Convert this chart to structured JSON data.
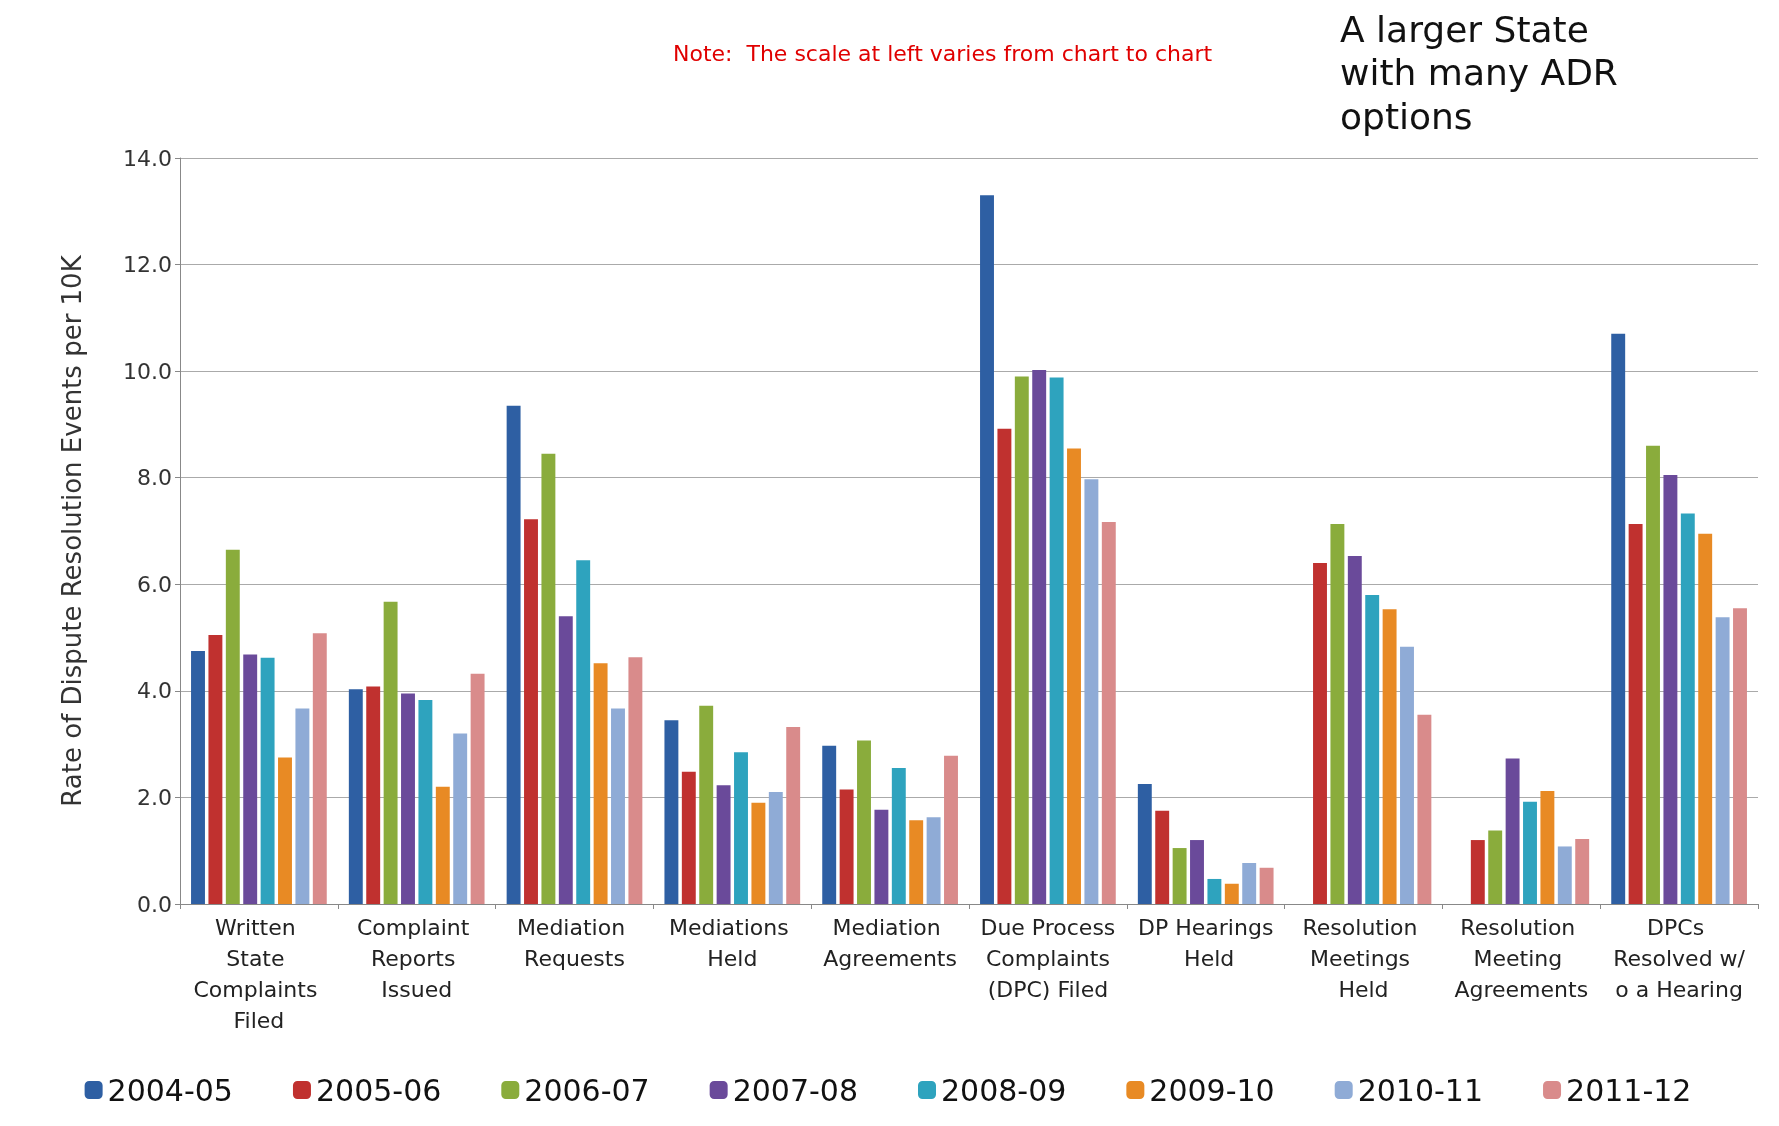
{
  "chart_data": {
    "type": "bar",
    "ylabel": "Rate of Dispute Resolution Events per 10K",
    "annotations": [
      "Note:  The scale at left varies from chart to chart",
      "A larger State with many ADR options"
    ],
    "categories": [
      "Written State Complaints Filed",
      "Complaint Reports Issued",
      "Mediation Requests",
      "Mediations Held",
      "Mediation Agreements",
      "Due Process Complaints (DPC) Filed",
      "DP Hearings Held",
      "Resolution Meetings Held",
      "Resolution Meeting Agreements",
      "DPCs Resolved w/o a Hearing"
    ],
    "series": [
      {
        "name": "2004-05",
        "color": "#2e5fa3",
        "values": [
          4.75,
          4.03,
          9.35,
          3.45,
          2.97,
          13.3,
          2.25,
          null,
          null,
          10.7
        ]
      },
      {
        "name": "2005-06",
        "color": "#c0312f",
        "values": [
          5.05,
          4.08,
          7.22,
          2.48,
          2.15,
          8.92,
          1.75,
          6.4,
          1.2,
          7.13
        ]
      },
      {
        "name": "2006-07",
        "color": "#8aac3c",
        "values": [
          6.65,
          5.67,
          8.45,
          3.72,
          3.07,
          9.9,
          1.05,
          7.13,
          1.38,
          8.6
        ]
      },
      {
        "name": "2007-08",
        "color": "#6a4a9a",
        "values": [
          4.68,
          3.95,
          5.4,
          2.23,
          1.77,
          10.02,
          1.2,
          6.53,
          2.73,
          8.05
        ]
      },
      {
        "name": "2008-09",
        "color": "#2ea3be",
        "values": [
          4.62,
          3.83,
          6.45,
          2.85,
          2.55,
          9.88,
          0.47,
          5.8,
          1.92,
          7.33
        ]
      },
      {
        "name": "2009-10",
        "color": "#e88a24",
        "values": [
          2.75,
          2.2,
          4.52,
          1.9,
          1.57,
          8.55,
          0.38,
          5.53,
          2.12,
          6.95
        ]
      },
      {
        "name": "2010-11",
        "color": "#8fabd6",
        "values": [
          3.67,
          3.2,
          3.67,
          2.1,
          1.63,
          7.97,
          0.77,
          4.83,
          1.08,
          5.38
        ]
      },
      {
        "name": "2011-12",
        "color": "#d98b8b",
        "values": [
          5.08,
          4.32,
          4.63,
          3.32,
          2.78,
          7.17,
          0.68,
          3.55,
          1.22,
          5.55
        ]
      }
    ],
    "ylim": [
      0,
      14
    ],
    "yticks": [
      {
        "value": 0,
        "label": "0.0"
      },
      {
        "value": 2,
        "label": "2.0"
      },
      {
        "value": 4,
        "label": "4.0"
      },
      {
        "value": 6,
        "label": "6.0"
      },
      {
        "value": 8,
        "label": "8.0"
      },
      {
        "value": 10,
        "label": "10.0"
      },
      {
        "value": 12,
        "label": "12.0"
      },
      {
        "value": 14,
        "label": "14.0"
      }
    ],
    "grid": "y",
    "legend": "bottom"
  }
}
